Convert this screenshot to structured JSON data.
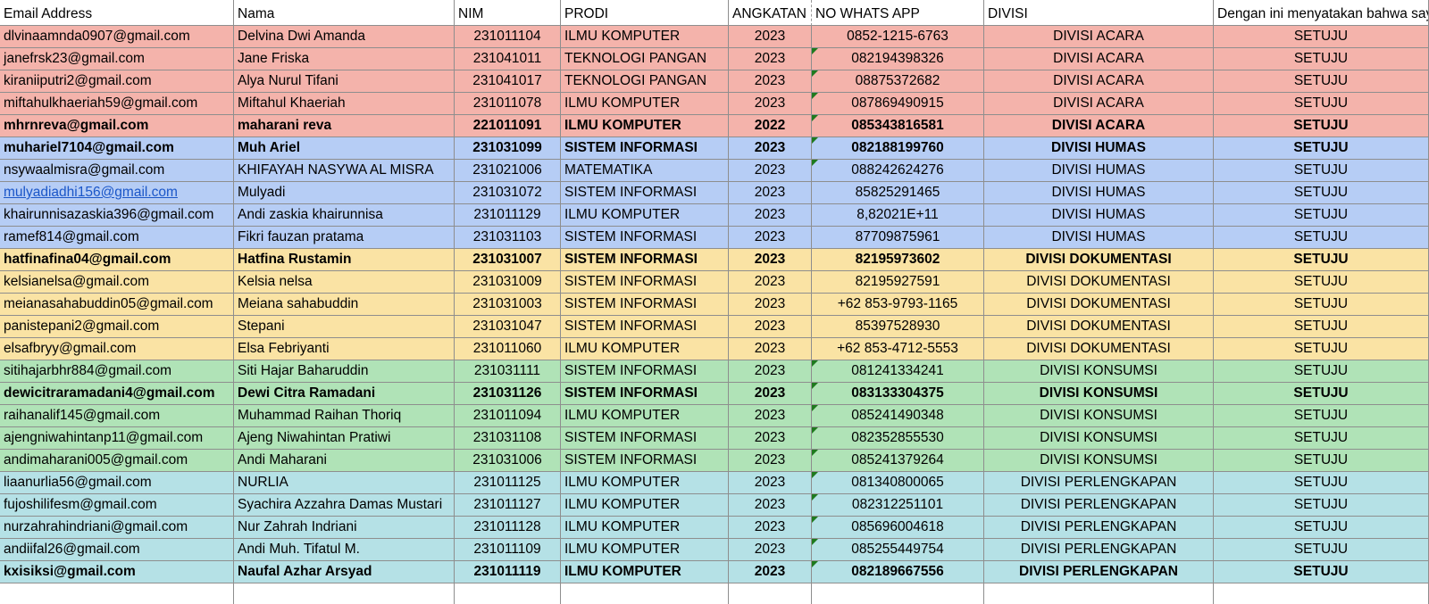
{
  "columns": [
    "Email Address",
    "Nama",
    "NIM",
    "PRODI",
    "ANGKATAN",
    "NO WHATS APP",
    "DIVISI",
    "Dengan ini menyatakan bahwa saya"
  ],
  "colors": {
    "acara": "#f4b3ab",
    "humas": "#b6cdf5",
    "dokumentasi": "#fae3a4",
    "konsumsi": "#b0e3b7",
    "perlengkapan": "#b5e1e6",
    "link": "#1a56c8",
    "flag": "#1e7a1e"
  },
  "rows": [
    {
      "email": "dlvinaamnda0907@gmail.com",
      "nama": "Delvina Dwi Amanda",
      "nim": "231011104",
      "prodi": "ILMU KOMPUTER",
      "angkatan": "2023",
      "wa": "0852-1215-6763",
      "divisi": "DIVISI ACARA",
      "status": "SETUJU",
      "group": "acara",
      "bold": false,
      "link": false,
      "flag": false
    },
    {
      "email": "janefrsk23@gmail.com",
      "nama": "Jane Friska",
      "nim": "231041011",
      "prodi": "TEKNOLOGI PANGAN",
      "angkatan": "2023",
      "wa": "082194398326",
      "divisi": "DIVISI ACARA",
      "status": "SETUJU",
      "group": "acara",
      "bold": false,
      "link": false,
      "flag": true
    },
    {
      "email": "kiraniiputri2@gmail.com",
      "nama": "Alya Nurul Tifani",
      "nim": "231041017",
      "prodi": "TEKNOLOGI PANGAN",
      "angkatan": "2023",
      "wa": "08875372682",
      "divisi": "DIVISI ACARA",
      "status": "SETUJU",
      "group": "acara",
      "bold": false,
      "link": false,
      "flag": true
    },
    {
      "email": "miftahulkhaeriah59@gmail.com",
      "nama": "Miftahul Khaeriah",
      "nim": "231011078",
      "prodi": "ILMU KOMPUTER",
      "angkatan": "2023",
      "wa": "087869490915",
      "divisi": "DIVISI ACARA",
      "status": "SETUJU",
      "group": "acara",
      "bold": false,
      "link": false,
      "flag": true
    },
    {
      "email": "mhrnreva@gmail.com",
      "nama": "maharani reva",
      "nim": "221011091",
      "prodi": "ILMU KOMPUTER",
      "angkatan": "2022",
      "wa": "085343816581",
      "divisi": "DIVISI ACARA",
      "status": "SETUJU",
      "group": "acara",
      "bold": true,
      "link": false,
      "flag": true
    },
    {
      "email": "muhariel7104@gmail.com",
      "nama": "Muh Ariel",
      "nim": "231031099",
      "prodi": "SISTEM INFORMASI",
      "angkatan": "2023",
      "wa": "082188199760",
      "divisi": "DIVISI HUMAS",
      "status": "SETUJU",
      "group": "humas",
      "bold": true,
      "link": false,
      "flag": true
    },
    {
      "email": "nsywaalmisra@gmail.com",
      "nama": "KHIFAYAH NASYWA AL MISRA",
      "nim": "231021006",
      "prodi": "MATEMATIKA",
      "angkatan": "2023",
      "wa": "088242624276",
      "divisi": "DIVISI HUMAS",
      "status": "SETUJU",
      "group": "humas",
      "bold": false,
      "link": false,
      "flag": true
    },
    {
      "email": "mulyadiadhi156@gmail.com",
      "nama": "Mulyadi",
      "nim": "231031072",
      "prodi": "SISTEM INFORMASI",
      "angkatan": "2023",
      "wa": "85825291465",
      "divisi": "DIVISI HUMAS",
      "status": "SETUJU",
      "group": "humas",
      "bold": false,
      "link": true,
      "flag": false
    },
    {
      "email": "khairunnisazaskia396@gmail.com",
      "nama": "Andi zaskia khairunnisa",
      "nim": "231011129",
      "prodi": "ILMU KOMPUTER",
      "angkatan": "2023",
      "wa": "8,82021E+11",
      "divisi": "DIVISI HUMAS",
      "status": "SETUJU",
      "group": "humas",
      "bold": false,
      "link": false,
      "flag": false
    },
    {
      "email": "ramef814@gmail.com",
      "nama": "Fikri fauzan pratama",
      "nim": "231031103",
      "prodi": "SISTEM INFORMASI",
      "angkatan": "2023",
      "wa": "87709875961",
      "divisi": "DIVISI HUMAS",
      "status": "SETUJU",
      "group": "humas",
      "bold": false,
      "link": false,
      "flag": false
    },
    {
      "email": "hatfinafina04@gmail.com",
      "nama": "Hatfina Rustamin",
      "nim": "231031007",
      "prodi": "SISTEM INFORMASI",
      "angkatan": "2023",
      "wa": "82195973602",
      "divisi": "DIVISI DOKUMENTASI",
      "status": "SETUJU",
      "group": "dokumentasi",
      "bold": true,
      "link": false,
      "flag": false
    },
    {
      "email": "kelsianelsa@gmail.com",
      "nama": "Kelsia nelsa",
      "nim": "231031009",
      "prodi": "SISTEM INFORMASI",
      "angkatan": "2023",
      "wa": "82195927591",
      "divisi": "DIVISI DOKUMENTASI",
      "status": "SETUJU",
      "group": "dokumentasi",
      "bold": false,
      "link": false,
      "flag": false
    },
    {
      "email": "meianasahabuddin05@gmail.com",
      "nama": "Meiana sahabuddin",
      "nim": "231031003",
      "prodi": "SISTEM INFORMASI",
      "angkatan": "2023",
      "wa": "+62 853-9793-1165",
      "divisi": "DIVISI DOKUMENTASI",
      "status": "SETUJU",
      "group": "dokumentasi",
      "bold": false,
      "link": false,
      "flag": false
    },
    {
      "email": "panistepani2@gmail.com",
      "nama": "Stepani",
      "nim": "231031047",
      "prodi": "SISTEM INFORMASI",
      "angkatan": "2023",
      "wa": "85397528930",
      "divisi": "DIVISI DOKUMENTASI",
      "status": "SETUJU",
      "group": "dokumentasi",
      "bold": false,
      "link": false,
      "flag": false
    },
    {
      "email": "elsafbryy@gmail.com",
      "nama": "Elsa Febriyanti",
      "nim": "231011060",
      "prodi": "ILMU KOMPUTER",
      "angkatan": "2023",
      "wa": "+62 853-4712-5553",
      "divisi": "DIVISI DOKUMENTASI",
      "status": "SETUJU",
      "group": "dokumentasi",
      "bold": false,
      "link": false,
      "flag": false
    },
    {
      "email": "sitihajarbhr884@gmail.com",
      "nama": "Siti Hajar Baharuddin",
      "nim": "231031111",
      "prodi": "SISTEM INFORMASI",
      "angkatan": "2023",
      "wa": "081241334241",
      "divisi": "DIVISI KONSUMSI",
      "status": "SETUJU",
      "group": "konsumsi",
      "bold": false,
      "link": false,
      "flag": true
    },
    {
      "email": "dewicitraramadani4@gmail.com",
      "nama": "Dewi Citra Ramadani",
      "nim": "231031126",
      "prodi": "SISTEM INFORMASI",
      "angkatan": "2023",
      "wa": "083133304375",
      "divisi": "DIVISI KONSUMSI",
      "status": "SETUJU",
      "group": "konsumsi",
      "bold": true,
      "link": false,
      "flag": true
    },
    {
      "email": "raihanalif145@gmail.com",
      "nama": "Muhammad Raihan Thoriq",
      "nim": "231011094",
      "prodi": "ILMU KOMPUTER",
      "angkatan": "2023",
      "wa": "085241490348",
      "divisi": "DIVISI KONSUMSI",
      "status": "SETUJU",
      "group": "konsumsi",
      "bold": false,
      "link": false,
      "flag": true
    },
    {
      "email": "ajengniwahintanp11@gmail.com",
      "nama": "Ajeng Niwahintan Pratiwi",
      "nim": "231031108",
      "prodi": "SISTEM INFORMASI",
      "angkatan": "2023",
      "wa": "082352855530",
      "divisi": "DIVISI KONSUMSI",
      "status": "SETUJU",
      "group": "konsumsi",
      "bold": false,
      "link": false,
      "flag": true
    },
    {
      "email": "andimaharani005@gmail.com",
      "nama": "Andi Maharani",
      "nim": "231031006",
      "prodi": "SISTEM INFORMASI",
      "angkatan": "2023",
      "wa": "085241379264",
      "divisi": "DIVISI KONSUMSI",
      "status": "SETUJU",
      "group": "konsumsi",
      "bold": false,
      "link": false,
      "flag": true
    },
    {
      "email": "liaanurlia56@gmail.com",
      "nama": "NURLIA",
      "nim": "231011125",
      "prodi": "ILMU KOMPUTER",
      "angkatan": "2023",
      "wa": "081340800065",
      "divisi": "DIVISI PERLENGKAPAN",
      "status": "SETUJU",
      "group": "perlengkapan",
      "bold": false,
      "link": false,
      "flag": true
    },
    {
      "email": "fujoshilifesm@gmail.com",
      "nama": "Syachira Azzahra Damas Mustari",
      "nim": "231011127",
      "prodi": "ILMU KOMPUTER",
      "angkatan": "2023",
      "wa": "082312251101",
      "divisi": "DIVISI PERLENGKAPAN",
      "status": "SETUJU",
      "group": "perlengkapan",
      "bold": false,
      "link": false,
      "flag": true
    },
    {
      "email": "nurzahrahindriani@gmail.com",
      "nama": "Nur Zahrah Indriani",
      "nim": "231011128",
      "prodi": "ILMU KOMPUTER",
      "angkatan": "2023",
      "wa": "085696004618",
      "divisi": "DIVISI PERLENGKAPAN",
      "status": "SETUJU",
      "group": "perlengkapan",
      "bold": false,
      "link": false,
      "flag": true
    },
    {
      "email": "andiifal26@gmail.com",
      "nama": "Andi Muh. Tifatul M.",
      "nim": "231011109",
      "prodi": "ILMU KOMPUTER",
      "angkatan": "2023",
      "wa": "085255449754",
      "divisi": "DIVISI PERLENGKAPAN",
      "status": "SETUJU",
      "group": "perlengkapan",
      "bold": false,
      "link": false,
      "flag": true
    },
    {
      "email": "kxisiksi@gmail.com",
      "nama": "Naufal Azhar Arsyad",
      "nim": "231011119",
      "prodi": "ILMU KOMPUTER",
      "angkatan": "2023",
      "wa": "082189667556",
      "divisi": "DIVISI PERLENGKAPAN",
      "status": "SETUJU",
      "group": "perlengkapan",
      "bold": true,
      "link": false,
      "flag": true
    }
  ]
}
